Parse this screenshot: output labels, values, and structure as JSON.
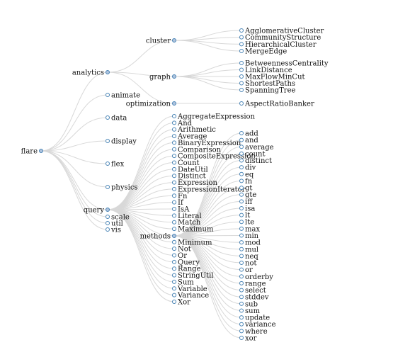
{
  "colors": {
    "link": "#d8d8d8",
    "node_stroke": "#4682b4",
    "parent_fill": "#b0c4de",
    "text": "#111111",
    "background": "#ffffff"
  },
  "tree": {
    "name": "flare",
    "children": [
      {
        "name": "analytics",
        "children": [
          {
            "name": "cluster",
            "children": [
              {
                "name": "AgglomerativeCluster"
              },
              {
                "name": "CommunityStructure"
              },
              {
                "name": "HierarchicalCluster"
              },
              {
                "name": "MergeEdge"
              }
            ]
          },
          {
            "name": "graph",
            "children": [
              {
                "name": "BetweennessCentrality"
              },
              {
                "name": "LinkDistance"
              },
              {
                "name": "MaxFlowMinCut"
              },
              {
                "name": "ShortestPaths"
              },
              {
                "name": "SpanningTree"
              }
            ]
          },
          {
            "name": "optimization",
            "children": [
              {
                "name": "AspectRatioBanker"
              }
            ]
          }
        ]
      },
      {
        "name": "animate"
      },
      {
        "name": "data"
      },
      {
        "name": "display"
      },
      {
        "name": "flex"
      },
      {
        "name": "physics"
      },
      {
        "name": "query",
        "children": [
          {
            "name": "AggregateExpression"
          },
          {
            "name": "And"
          },
          {
            "name": "Arithmetic"
          },
          {
            "name": "Average"
          },
          {
            "name": "BinaryExpression"
          },
          {
            "name": "Comparison"
          },
          {
            "name": "CompositeExpression"
          },
          {
            "name": "Count"
          },
          {
            "name": "DateUtil"
          },
          {
            "name": "Distinct"
          },
          {
            "name": "Expression"
          },
          {
            "name": "ExpressionIterator"
          },
          {
            "name": "Fn"
          },
          {
            "name": "If"
          },
          {
            "name": "IsA"
          },
          {
            "name": "Literal"
          },
          {
            "name": "Match"
          },
          {
            "name": "Maximum"
          },
          {
            "name": "methods",
            "children": [
              {
                "name": "add"
              },
              {
                "name": "and"
              },
              {
                "name": "average"
              },
              {
                "name": "count"
              },
              {
                "name": "distinct"
              },
              {
                "name": "div"
              },
              {
                "name": "eq"
              },
              {
                "name": "fn"
              },
              {
                "name": "gt"
              },
              {
                "name": "gte"
              },
              {
                "name": "iff"
              },
              {
                "name": "isa"
              },
              {
                "name": "lt"
              },
              {
                "name": "lte"
              },
              {
                "name": "max"
              },
              {
                "name": "min"
              },
              {
                "name": "mod"
              },
              {
                "name": "mul"
              },
              {
                "name": "neq"
              },
              {
                "name": "not"
              },
              {
                "name": "or"
              },
              {
                "name": "orderby"
              },
              {
                "name": "range"
              },
              {
                "name": "select"
              },
              {
                "name": "stddev"
              },
              {
                "name": "sub"
              },
              {
                "name": "sum"
              },
              {
                "name": "update"
              },
              {
                "name": "variance"
              },
              {
                "name": "where"
              },
              {
                "name": "xor"
              }
            ]
          },
          {
            "name": "Minimum"
          },
          {
            "name": "Not"
          },
          {
            "name": "Or"
          },
          {
            "name": "Query"
          },
          {
            "name": "Range"
          },
          {
            "name": "StringUtil"
          },
          {
            "name": "Sum"
          },
          {
            "name": "Variable"
          },
          {
            "name": "Variance"
          },
          {
            "name": "Xor"
          }
        ]
      },
      {
        "name": "scale"
      },
      {
        "name": "util"
      },
      {
        "name": "vis"
      }
    ]
  }
}
